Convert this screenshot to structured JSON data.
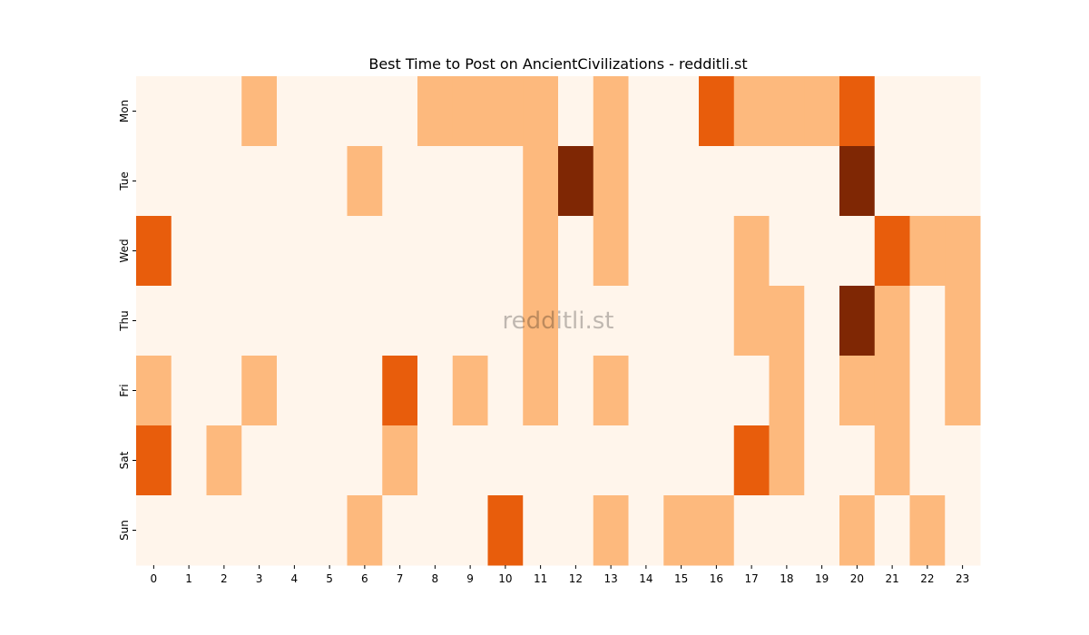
{
  "chart_data": {
    "type": "heatmap",
    "title": "Best Time to Post on AncientCivilizations - redditli.st",
    "xlabel": "",
    "ylabel": "",
    "x_categories": [
      "0",
      "1",
      "2",
      "3",
      "4",
      "5",
      "6",
      "7",
      "8",
      "9",
      "10",
      "11",
      "12",
      "13",
      "14",
      "15",
      "16",
      "17",
      "18",
      "19",
      "20",
      "21",
      "22",
      "23"
    ],
    "y_categories": [
      "Mon",
      "Tue",
      "Wed",
      "Thu",
      "Fri",
      "Sat",
      "Sun"
    ],
    "values": [
      [
        0,
        0,
        0,
        1,
        0,
        0,
        0,
        0,
        1,
        1,
        1,
        1,
        0,
        1,
        0,
        0,
        2,
        1,
        1,
        1,
        2,
        0,
        0,
        0
      ],
      [
        0,
        0,
        0,
        0,
        0,
        0,
        1,
        0,
        0,
        0,
        0,
        1,
        3,
        1,
        0,
        0,
        0,
        0,
        0,
        0,
        3,
        0,
        0,
        0
      ],
      [
        2,
        0,
        0,
        0,
        0,
        0,
        0,
        0,
        0,
        0,
        0,
        1,
        0,
        1,
        0,
        0,
        0,
        1,
        0,
        0,
        0,
        2,
        1,
        1
      ],
      [
        0,
        0,
        0,
        0,
        0,
        0,
        0,
        0,
        0,
        0,
        0,
        1,
        0,
        0,
        0,
        0,
        0,
        1,
        1,
        0,
        3,
        1,
        0,
        1
      ],
      [
        1,
        0,
        0,
        1,
        0,
        0,
        0,
        2,
        0,
        1,
        0,
        1,
        0,
        1,
        0,
        0,
        0,
        0,
        1,
        0,
        1,
        1,
        0,
        1
      ],
      [
        2,
        0,
        1,
        0,
        0,
        0,
        0,
        1,
        0,
        0,
        0,
        0,
        0,
        0,
        0,
        0,
        0,
        2,
        1,
        0,
        0,
        1,
        0,
        0
      ],
      [
        0,
        0,
        0,
        0,
        0,
        0,
        1,
        0,
        0,
        0,
        2,
        0,
        0,
        1,
        0,
        1,
        1,
        0,
        0,
        0,
        1,
        0,
        1,
        0
      ]
    ],
    "value_range": [
      0,
      3
    ],
    "colors": [
      "#fff5eb",
      "#fdb97d",
      "#e85d0c",
      "#7f2704"
    ],
    "watermark": "redditli.st",
    "legend": "none",
    "grid": false
  }
}
